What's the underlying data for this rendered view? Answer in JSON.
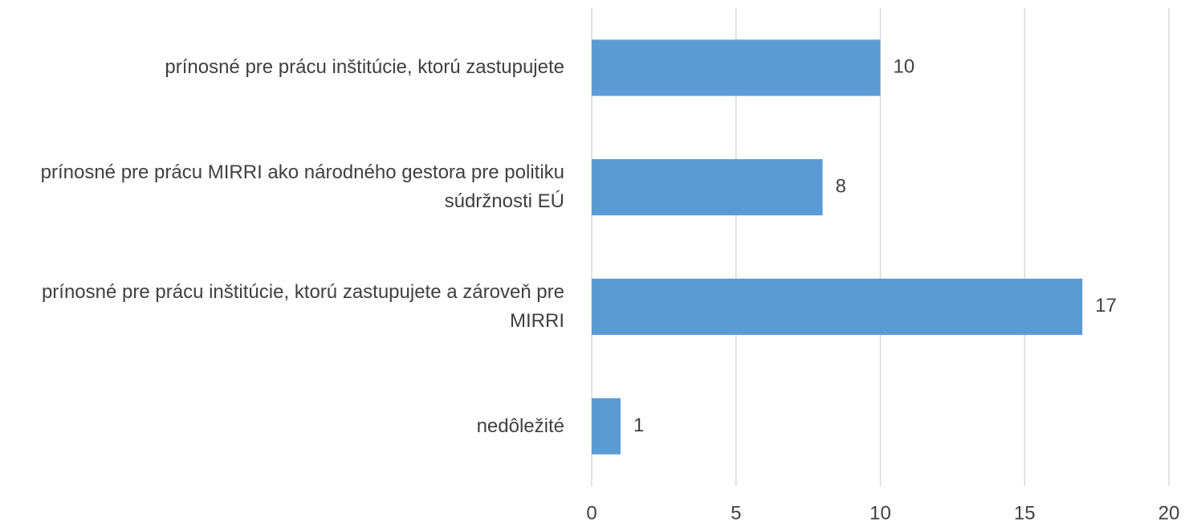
{
  "chart_data": {
    "type": "bar",
    "orientation": "horizontal",
    "categories": [
      "prínosné pre prácu inštitúcie, ktorú zastupujete",
      "prínosné pre prácu MIRRI ako národného gestora pre politiku súdržnosti EÚ",
      "prínosné pre prácu inštitúcie, ktorú zastupujete a zároveň pre MIRRI",
      "nedôležité"
    ],
    "values": [
      10,
      8,
      17,
      1
    ],
    "color": "#5b9bd5",
    "xlim": [
      0,
      20
    ],
    "xticks": [
      0,
      5,
      10,
      15,
      20
    ],
    "grid": true
  }
}
